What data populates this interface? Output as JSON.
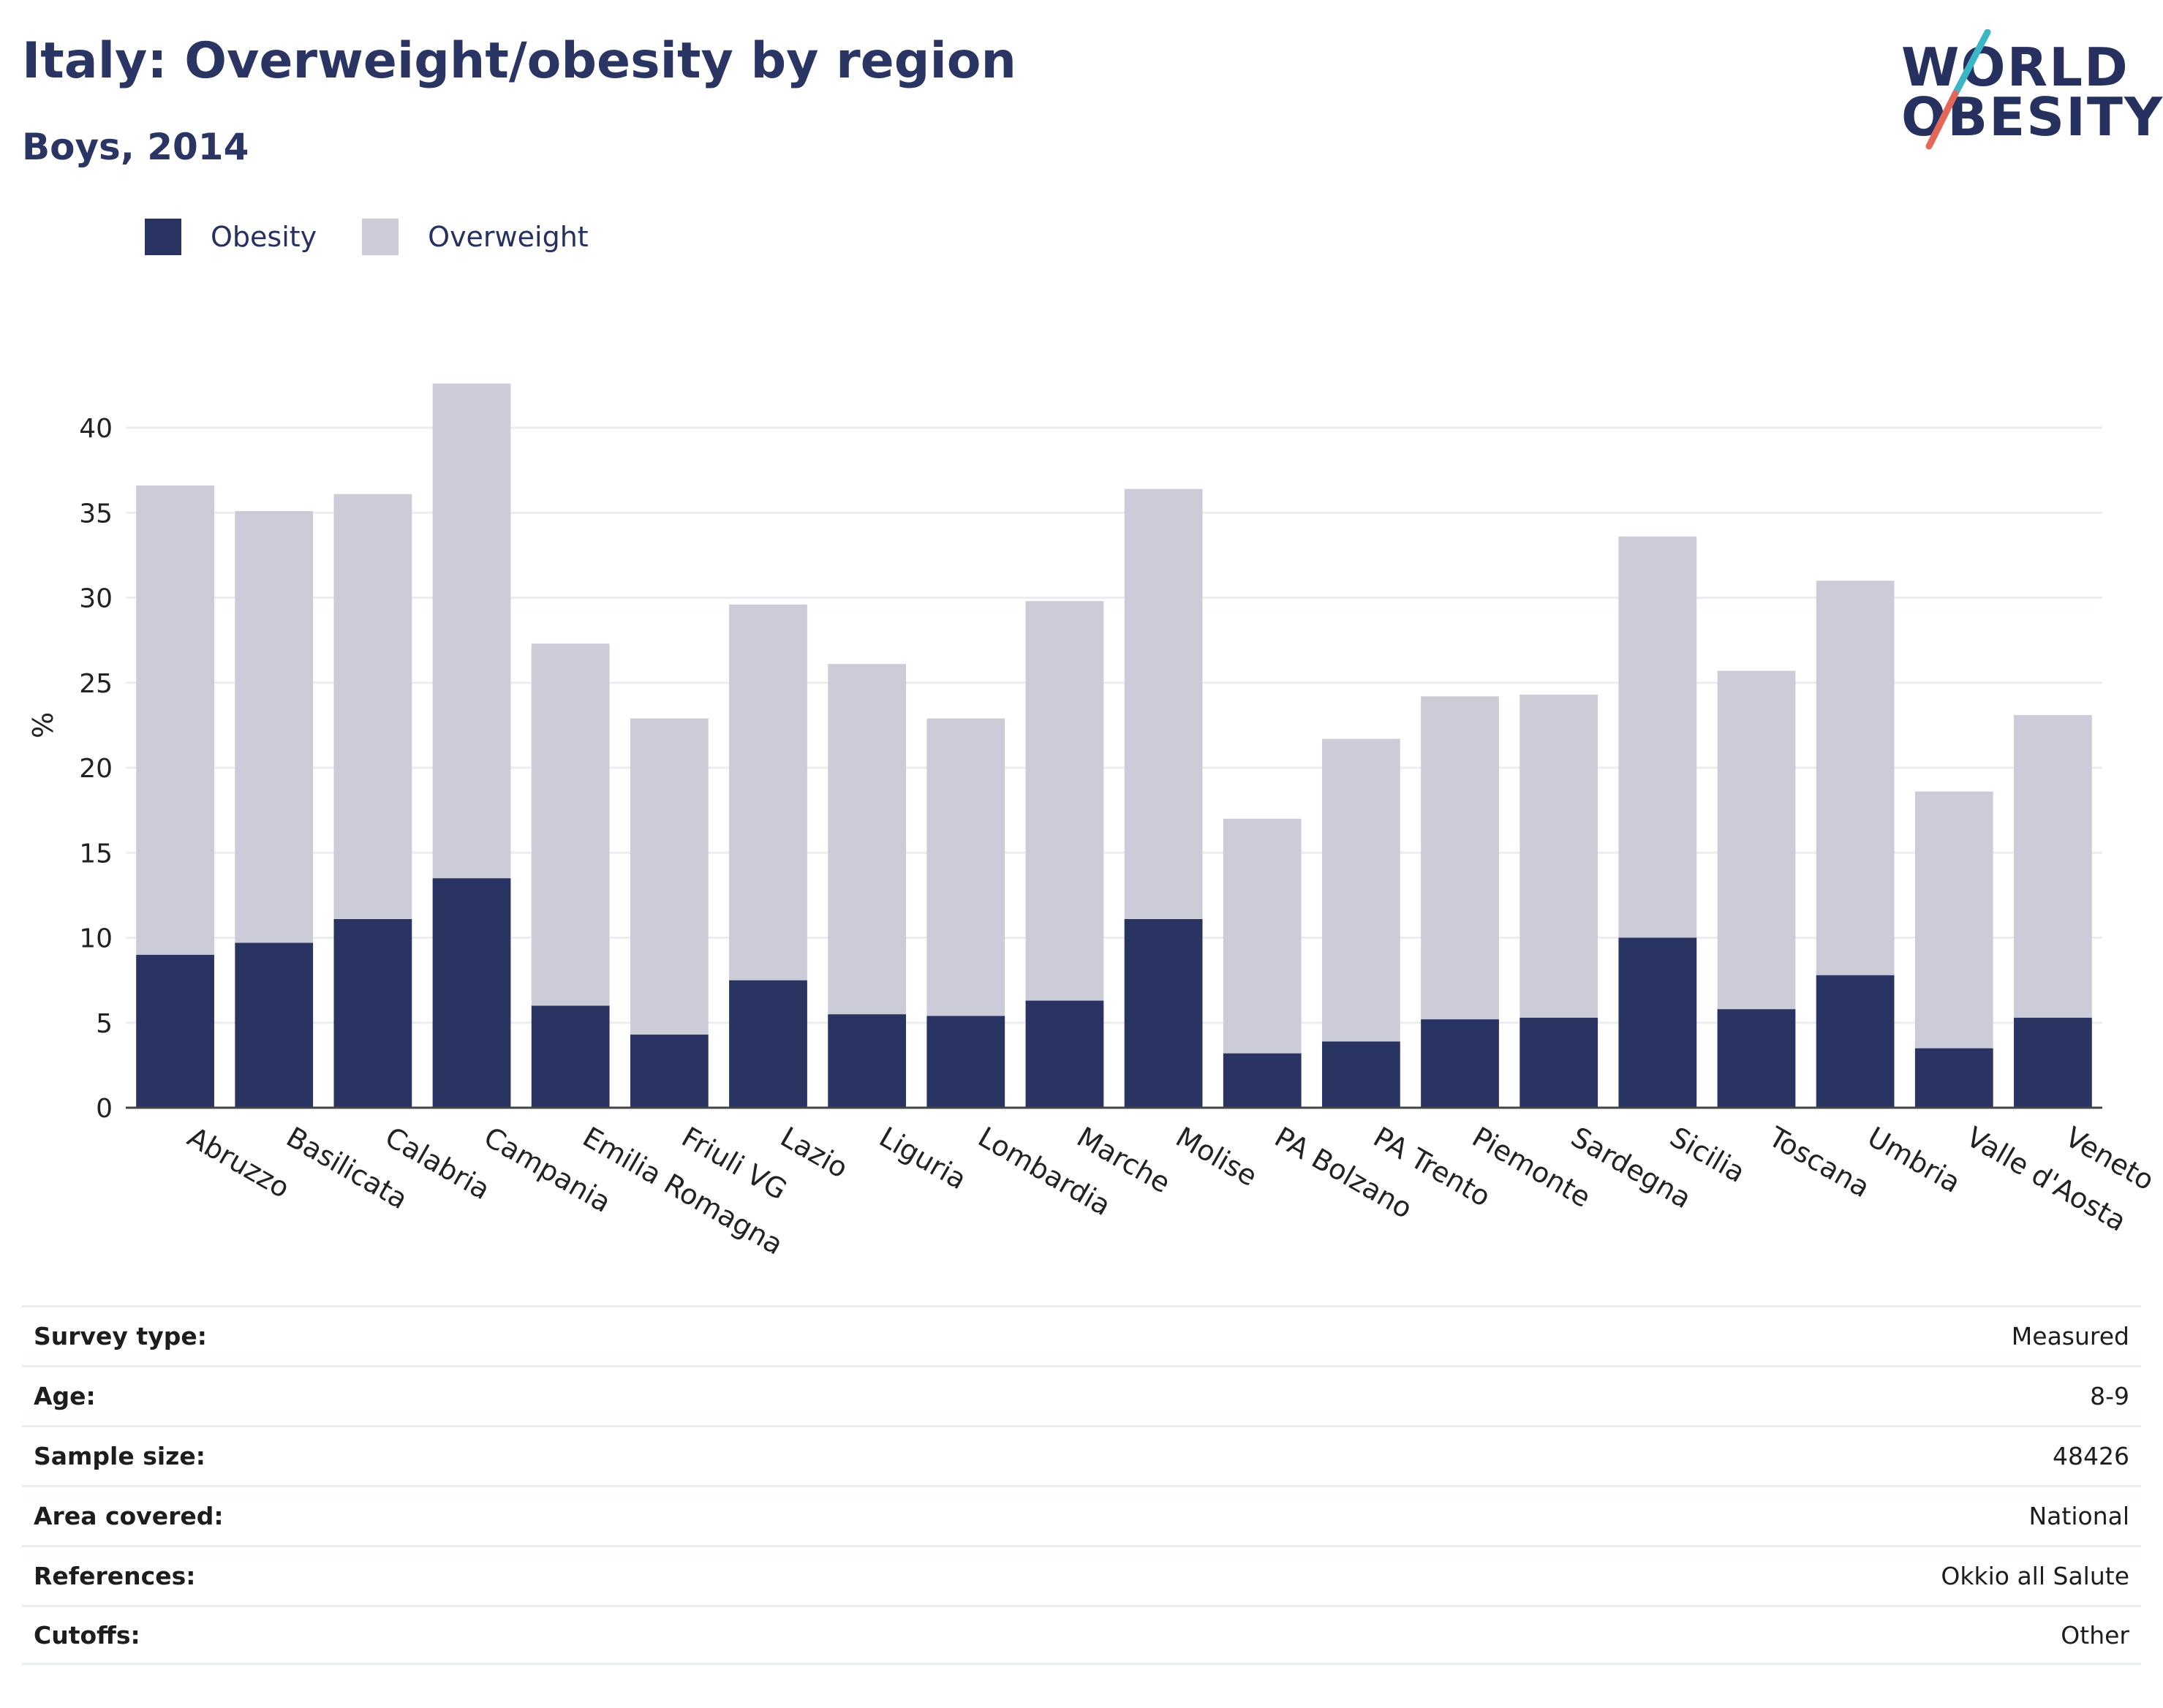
{
  "header": {
    "title": "Italy: Overweight/obesity by region",
    "subtitle": "Boys, 2014"
  },
  "logo": {
    "line1": "WORLD",
    "line2": "OBESITY"
  },
  "colors": {
    "obesity": "#293462",
    "overweight": "#cbccd8",
    "grid": "#ebeef1",
    "axis": "#444444",
    "text": "#263160",
    "logo_slash_top": "#3cb6c6",
    "logo_slash_bottom": "#e4685a"
  },
  "chart_data": {
    "type": "bar",
    "stacked": true,
    "ylabel": "%",
    "xlabel": "",
    "ylim": [
      0,
      45
    ],
    "yticks": [
      0,
      5,
      10,
      15,
      20,
      25,
      30,
      35,
      40
    ],
    "grid": true,
    "legend": "top-left",
    "categories": [
      "Abruzzo",
      "Basilicata",
      "Calabria",
      "Campania",
      "Emilia Romagna",
      "Friuli VG",
      "Lazio",
      "Liguria",
      "Lombardia",
      "Marche",
      "Molise",
      "PA Bolzano",
      "PA Trento",
      "Piemonte",
      "Sardegna",
      "Sicilia",
      "Toscana",
      "Umbria",
      "Valle d'Aosta",
      "Veneto"
    ],
    "series": [
      {
        "name": "Obesity",
        "values": [
          9.0,
          9.7,
          11.1,
          13.5,
          6.0,
          4.3,
          7.5,
          5.5,
          5.4,
          6.3,
          11.1,
          3.2,
          3.9,
          5.2,
          5.3,
          10.0,
          5.8,
          7.8,
          3.5,
          5.3
        ]
      },
      {
        "name": "Overweight",
        "values": [
          27.6,
          25.4,
          25.0,
          29.1,
          21.3,
          18.6,
          22.1,
          20.6,
          17.5,
          23.5,
          25.3,
          13.8,
          17.8,
          19.0,
          19.0,
          23.6,
          19.9,
          23.2,
          15.1,
          17.8
        ]
      }
    ]
  },
  "info": [
    {
      "label": "Survey type:",
      "value": "Measured"
    },
    {
      "label": "Age:",
      "value": "8-9"
    },
    {
      "label": "Sample size:",
      "value": "48426"
    },
    {
      "label": "Area covered:",
      "value": "National"
    },
    {
      "label": "References:",
      "value": "Okkio all Salute"
    },
    {
      "label": "Cutoffs:",
      "value": "Other"
    }
  ]
}
